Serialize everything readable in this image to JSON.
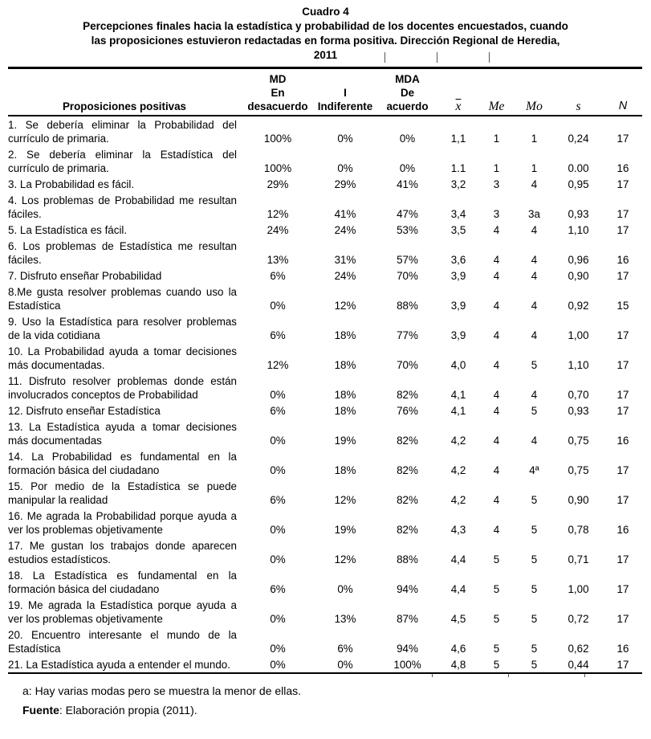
{
  "caption": {
    "label": "Cuadro 4",
    "subtitle": "Percepciones finales hacia la estadística y probabilidad de los docentes encuestados, cuando\nlas proposiciones estuvieron redactadas en forma positiva. Dirección Regional de Heredia,\n2011"
  },
  "table": {
    "columns": [
      {
        "key": "prop",
        "label": "Proposiciones positivas",
        "symbol": false
      },
      {
        "key": "md",
        "label": "MD\nEn\ndesacuerdo",
        "symbol": false
      },
      {
        "key": "i",
        "label": "I\nIndiferente",
        "symbol": false
      },
      {
        "key": "mda",
        "label": "MDA\nDe\nacuerdo",
        "symbol": false
      },
      {
        "key": "mean",
        "label": "x",
        "symbol": true,
        "overline": true
      },
      {
        "key": "me",
        "label": "Me",
        "symbol": true
      },
      {
        "key": "mo",
        "label": "Mo",
        "symbol": true
      },
      {
        "key": "s",
        "label": "s",
        "symbol": true
      },
      {
        "key": "n",
        "label": "N",
        "symbol": true,
        "sans_italic": true
      }
    ],
    "rows": [
      {
        "prop": "1. Se debería eliminar la Probabilidad del currículo de primaria.",
        "md": "100%",
        "i": "0%",
        "mda": "0%",
        "mean": "1,1",
        "me": "1",
        "mo": "1",
        "s": "0,24",
        "n": "17"
      },
      {
        "prop": "2. Se debería eliminar la Estadística del currículo de primaria.",
        "md": "100%",
        "i": "0%",
        "mda": "0%",
        "mean": "1.1",
        "me": "1",
        "mo": "1",
        "s": "0.00",
        "n": "16"
      },
      {
        "prop": "3. La Probabilidad es fácil.",
        "md": "29%",
        "i": "29%",
        "mda": "41%",
        "mean": "3,2",
        "me": "3",
        "mo": "4",
        "s": "0,95",
        "n": "17"
      },
      {
        "prop": "4. Los problemas de Probabilidad me resultan fáciles.",
        "md": "12%",
        "i": "41%",
        "mda": "47%",
        "mean": "3,4",
        "me": "3",
        "mo": "3a",
        "s": "0,93",
        "n": "17"
      },
      {
        "prop": "5. La Estadística es fácil.",
        "md": "24%",
        "i": "24%",
        "mda": "53%",
        "mean": "3,5",
        "me": "4",
        "mo": "4",
        "s": "1,10",
        "n": "17"
      },
      {
        "prop": "6. Los problemas de Estadística me resultan fáciles.",
        "md": "13%",
        "i": "31%",
        "mda": "57%",
        "mean": "3,6",
        "me": "4",
        "mo": "4",
        "s": "0,96",
        "n": "16"
      },
      {
        "prop": "7. Disfruto enseñar Probabilidad",
        "md": "6%",
        "i": "24%",
        "mda": "70%",
        "mean": "3,9",
        "me": "4",
        "mo": "4",
        "s": "0,90",
        "n": "17"
      },
      {
        "prop": "8.Me gusta resolver problemas cuando uso la Estadística",
        "md": "0%",
        "i": "12%",
        "mda": "88%",
        "mean": "3,9",
        "me": "4",
        "mo": "4",
        "s": "0,92",
        "n": "15"
      },
      {
        "prop": "9. Uso la Estadística para resolver problemas de la vida cotidiana",
        "md": "6%",
        "i": "18%",
        "mda": "77%",
        "mean": "3,9",
        "me": "4",
        "mo": "4",
        "s": "1,00",
        "n": "17"
      },
      {
        "prop": "10. La Probabilidad ayuda a tomar decisiones más documentadas.",
        "md": "12%",
        "i": "18%",
        "mda": "70%",
        "mean": "4,0",
        "me": "4",
        "mo": "5",
        "s": "1,10",
        "n": "17"
      },
      {
        "prop": "11. Disfruto resolver problemas donde están involucrados conceptos de Probabilidad",
        "md": "0%",
        "i": "18%",
        "mda": "82%",
        "mean": "4,1",
        "me": "4",
        "mo": "4",
        "s": "0,70",
        "n": "17"
      },
      {
        "prop": "12. Disfruto enseñar Estadística",
        "md": "6%",
        "i": "18%",
        "mda": "76%",
        "mean": "4,1",
        "me": "4",
        "mo": "5",
        "s": "0,93",
        "n": "17"
      },
      {
        "prop": "13. La Estadística ayuda a tomar decisiones más documentadas",
        "md": "0%",
        "i": "19%",
        "mda": "82%",
        "mean": "4,2",
        "me": "4",
        "mo": "4",
        "s": "0,75",
        "n": "16"
      },
      {
        "prop": "14. La Probabilidad es fundamental en la formación básica del ciudadano",
        "md": "0%",
        "i": "18%",
        "mda": "82%",
        "mean": "4,2",
        "me": "4",
        "mo": "4ª",
        "s": "0,75",
        "n": "17"
      },
      {
        "prop": "15. Por medio de la Estadística se puede manipular la realidad",
        "md": "6%",
        "i": "12%",
        "mda": "82%",
        "mean": "4,2",
        "me": "4",
        "mo": "5",
        "s": "0,90",
        "n": "17"
      },
      {
        "prop": "16. Me agrada la Probabilidad porque ayuda a ver los problemas objetivamente",
        "md": "0%",
        "i": "19%",
        "mda": "82%",
        "mean": "4,3",
        "me": "4",
        "mo": "5",
        "s": "0,78",
        "n": "16"
      },
      {
        "prop": "17. Me gustan los trabajos donde aparecen estudios estadísticos.",
        "md": "0%",
        "i": "12%",
        "mda": "88%",
        "mean": "4,4",
        "me": "5",
        "mo": "5",
        "s": "0,71",
        "n": "17"
      },
      {
        "prop": "18. La Estadística es fundamental en la formación básica del ciudadano",
        "md": "6%",
        "i": "0%",
        "mda": "94%",
        "mean": "4,4",
        "me": "5",
        "mo": "5",
        "s": "1,00",
        "n": "17"
      },
      {
        "prop": "19. Me agrada la Estadística porque ayuda a ver los problemas objetivamente",
        "md": "0%",
        "i": "13%",
        "mda": "87%",
        "mean": "4,5",
        "me": "5",
        "mo": "5",
        "s": "0,72",
        "n": "17"
      },
      {
        "prop": "20. Encuentro interesante el mundo de la Estadística",
        "md": "0%",
        "i": "6%",
        "mda": "94%",
        "mean": "4,6",
        "me": "5",
        "mo": "5",
        "s": "0,62",
        "n": "16"
      },
      {
        "prop": "21. La Estadística ayuda a entender el mundo.",
        "md": "0%",
        "i": "0%",
        "mda": "100%",
        "mean": "4,8",
        "me": "5",
        "mo": "5",
        "s": "0,44",
        "n": "17"
      }
    ]
  },
  "footnotes": {
    "mode_note": "a: Hay varias modas pero se muestra la menor de ellas.",
    "source_label": "Fuente",
    "source_rest": ": Elaboración propia (2011)."
  },
  "colors": {
    "text": "#000000",
    "background": "#ffffff",
    "rule": "#000000"
  }
}
